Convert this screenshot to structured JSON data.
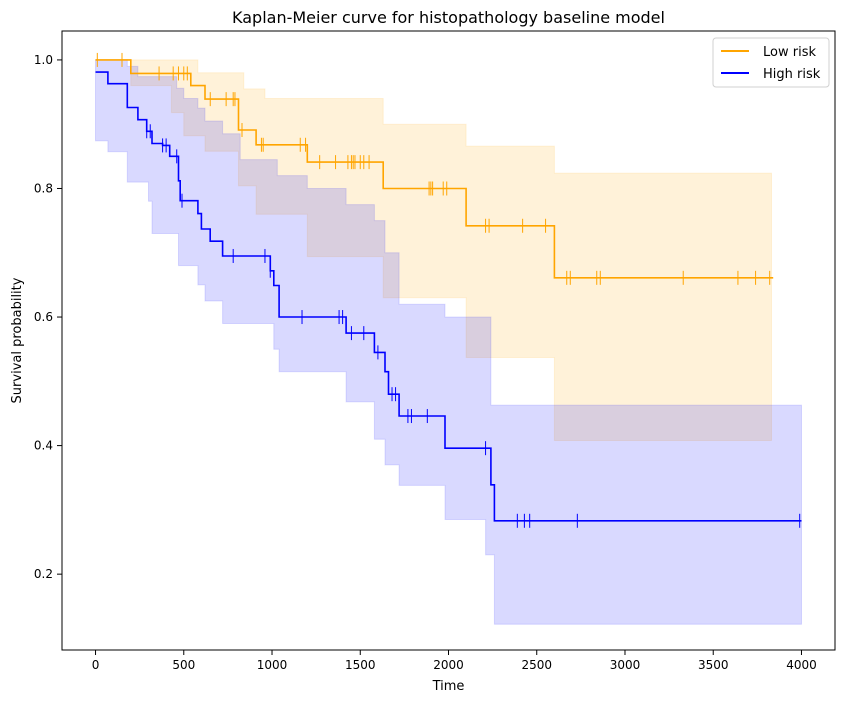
{
  "chart_data": {
    "type": "line",
    "subtype": "kaplan-meier",
    "title": "Kaplan-Meier curve for histopathology baseline model",
    "xlabel": "Time",
    "ylabel": "Survival probability",
    "xlim": [
      -190,
      4190
    ],
    "ylim": [
      0.082,
      1.045
    ],
    "xticks": [
      0,
      500,
      1000,
      1500,
      2000,
      2500,
      3000,
      3500,
      4000
    ],
    "yticks": [
      0.2,
      0.4,
      0.6,
      0.8,
      1.0
    ],
    "ytick_labels": [
      "0.2",
      "0.4",
      "0.6",
      "0.8",
      "1.0"
    ],
    "grid": false,
    "legend_position": "top-right",
    "series": [
      {
        "name": "Low risk",
        "color": "#FFA500",
        "ci_color": "#FFA500",
        "step": [
          [
            0,
            1.0
          ],
          [
            200,
            1.0
          ],
          [
            200,
            0.979
          ],
          [
            540,
            0.979
          ],
          [
            540,
            0.96
          ],
          [
            620,
            0.96
          ],
          [
            620,
            0.939
          ],
          [
            810,
            0.939
          ],
          [
            810,
            0.891
          ],
          [
            910,
            0.891
          ],
          [
            910,
            0.868
          ],
          [
            1200,
            0.868
          ],
          [
            1200,
            0.841
          ],
          [
            1630,
            0.841
          ],
          [
            1630,
            0.8
          ],
          [
            2100,
            0.8
          ],
          [
            2100,
            0.742
          ],
          [
            2600,
            0.742
          ],
          [
            2600,
            0.661
          ],
          [
            3840,
            0.661
          ]
        ],
        "ci_upper": [
          [
            0,
            1.0
          ],
          [
            580,
            1.0
          ],
          [
            580,
            0.98
          ],
          [
            840,
            0.98
          ],
          [
            840,
            0.955
          ],
          [
            960,
            0.955
          ],
          [
            960,
            0.94
          ],
          [
            1630,
            0.94
          ],
          [
            1630,
            0.9
          ],
          [
            2100,
            0.9
          ],
          [
            2100,
            0.866
          ],
          [
            2600,
            0.866
          ],
          [
            2600,
            0.824
          ],
          [
            3830,
            0.824
          ]
        ],
        "ci_lower": [
          [
            0,
            1.0
          ],
          [
            200,
            1.0
          ],
          [
            200,
            0.96
          ],
          [
            430,
            0.96
          ],
          [
            430,
            0.918
          ],
          [
            500,
            0.918
          ],
          [
            500,
            0.882
          ],
          [
            620,
            0.882
          ],
          [
            620,
            0.858
          ],
          [
            810,
            0.858
          ],
          [
            810,
            0.804
          ],
          [
            910,
            0.804
          ],
          [
            910,
            0.76
          ],
          [
            1200,
            0.76
          ],
          [
            1200,
            0.694
          ],
          [
            1630,
            0.694
          ],
          [
            1630,
            0.63
          ],
          [
            2100,
            0.63
          ],
          [
            2100,
            0.537
          ],
          [
            2600,
            0.537
          ],
          [
            2600,
            0.408
          ],
          [
            3830,
            0.408
          ]
        ],
        "censor_times": [
          10,
          150,
          360,
          440,
          470,
          500,
          520,
          650,
          740,
          780,
          790,
          830,
          940,
          950,
          1160,
          1190,
          1270,
          1360,
          1430,
          1450,
          1460,
          1470,
          1500,
          1520,
          1550,
          1890,
          1900,
          1910,
          1970,
          1990,
          2210,
          2230,
          2420,
          2550,
          2670,
          2690,
          2840,
          2860,
          3330,
          3640,
          3740,
          3820
        ]
      },
      {
        "name": "High risk",
        "color": "#0000FF",
        "ci_color": "#0000FF",
        "step": [
          [
            0,
            0.981
          ],
          [
            70,
            0.981
          ],
          [
            70,
            0.963
          ],
          [
            180,
            0.963
          ],
          [
            180,
            0.926
          ],
          [
            240,
            0.926
          ],
          [
            240,
            0.907
          ],
          [
            290,
            0.907
          ],
          [
            290,
            0.889
          ],
          [
            320,
            0.889
          ],
          [
            320,
            0.87
          ],
          [
            380,
            0.87
          ],
          [
            380,
            0.867
          ],
          [
            420,
            0.867
          ],
          [
            420,
            0.85
          ],
          [
            470,
            0.85
          ],
          [
            470,
            0.812
          ],
          [
            480,
            0.812
          ],
          [
            480,
            0.781
          ],
          [
            580,
            0.781
          ],
          [
            580,
            0.761
          ],
          [
            600,
            0.761
          ],
          [
            600,
            0.737
          ],
          [
            650,
            0.737
          ],
          [
            650,
            0.718
          ],
          [
            720,
            0.718
          ],
          [
            720,
            0.695
          ],
          [
            990,
            0.695
          ],
          [
            990,
            0.672
          ],
          [
            1010,
            0.672
          ],
          [
            1010,
            0.649
          ],
          [
            1040,
            0.649
          ],
          [
            1040,
            0.6
          ],
          [
            1420,
            0.6
          ],
          [
            1420,
            0.575
          ],
          [
            1580,
            0.575
          ],
          [
            1580,
            0.545
          ],
          [
            1640,
            0.545
          ],
          [
            1640,
            0.515
          ],
          [
            1660,
            0.515
          ],
          [
            1660,
            0.48
          ],
          [
            1720,
            0.48
          ],
          [
            1720,
            0.446
          ],
          [
            1980,
            0.446
          ],
          [
            1980,
            0.396
          ],
          [
            2210,
            0.396
          ],
          [
            2210,
            0.396
          ],
          [
            2240,
            0.396
          ],
          [
            2240,
            0.339
          ],
          [
            2260,
            0.339
          ],
          [
            2260,
            0.283
          ],
          [
            4000,
            0.283
          ]
        ],
        "ci_upper": [
          [
            0,
            1.0
          ],
          [
            180,
            1.0
          ],
          [
            180,
            0.99
          ],
          [
            240,
            0.99
          ],
          [
            240,
            0.974
          ],
          [
            460,
            0.974
          ],
          [
            460,
            0.956
          ],
          [
            500,
            0.956
          ],
          [
            500,
            0.94
          ],
          [
            580,
            0.94
          ],
          [
            580,
            0.925
          ],
          [
            620,
            0.925
          ],
          [
            620,
            0.905
          ],
          [
            720,
            0.905
          ],
          [
            720,
            0.885
          ],
          [
            820,
            0.885
          ],
          [
            820,
            0.845
          ],
          [
            1030,
            0.845
          ],
          [
            1030,
            0.82
          ],
          [
            1200,
            0.82
          ],
          [
            1200,
            0.8
          ],
          [
            1420,
            0.8
          ],
          [
            1420,
            0.775
          ],
          [
            1580,
            0.775
          ],
          [
            1580,
            0.75
          ],
          [
            1640,
            0.75
          ],
          [
            1640,
            0.7
          ],
          [
            1720,
            0.7
          ],
          [
            1720,
            0.62
          ],
          [
            1980,
            0.62
          ],
          [
            1980,
            0.6
          ],
          [
            2240,
            0.6
          ],
          [
            2240,
            0.463
          ],
          [
            4000,
            0.463
          ]
        ],
        "ci_lower": [
          [
            0,
            0.874
          ],
          [
            70,
            0.874
          ],
          [
            70,
            0.857
          ],
          [
            180,
            0.857
          ],
          [
            180,
            0.81
          ],
          [
            300,
            0.81
          ],
          [
            300,
            0.78
          ],
          [
            320,
            0.78
          ],
          [
            320,
            0.73
          ],
          [
            470,
            0.73
          ],
          [
            470,
            0.68
          ],
          [
            580,
            0.68
          ],
          [
            580,
            0.65
          ],
          [
            620,
            0.65
          ],
          [
            620,
            0.625
          ],
          [
            720,
            0.625
          ],
          [
            720,
            0.59
          ],
          [
            1010,
            0.59
          ],
          [
            1010,
            0.55
          ],
          [
            1040,
            0.55
          ],
          [
            1040,
            0.515
          ],
          [
            1420,
            0.515
          ],
          [
            1420,
            0.468
          ],
          [
            1580,
            0.468
          ],
          [
            1580,
            0.41
          ],
          [
            1640,
            0.41
          ],
          [
            1640,
            0.37
          ],
          [
            1720,
            0.37
          ],
          [
            1720,
            0.338
          ],
          [
            1980,
            0.338
          ],
          [
            1980,
            0.285
          ],
          [
            2210,
            0.285
          ],
          [
            2210,
            0.23
          ],
          [
            2260,
            0.23
          ],
          [
            2260,
            0.122
          ],
          [
            4000,
            0.122
          ]
        ],
        "censor_times": [
          290,
          310,
          380,
          400,
          460,
          490,
          780,
          960,
          990,
          1170,
          1380,
          1400,
          1450,
          1520,
          1600,
          1680,
          1700,
          1770,
          1790,
          1880,
          2210,
          2390,
          2430,
          2460,
          2730,
          3990
        ]
      }
    ]
  }
}
